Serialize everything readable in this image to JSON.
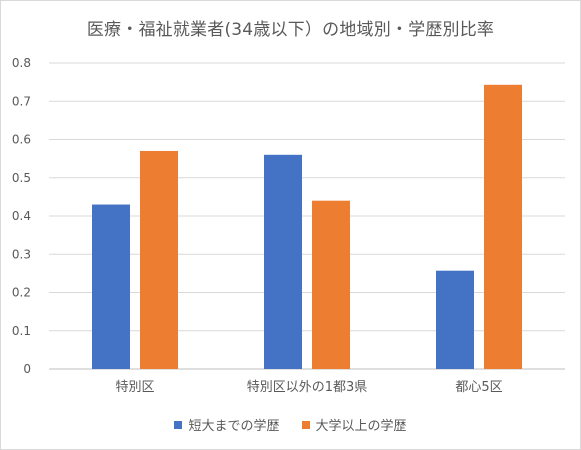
{
  "chart_data": {
    "type": "bar",
    "title": "医療・福祉就業者(34歳以下）の地域別・学歴別比率",
    "categories": [
      "特別区",
      "特別区以外の1都3県",
      "都心5区"
    ],
    "series": [
      {
        "name": "短大までの学歴",
        "color": "#4472c4",
        "values": [
          0.43,
          0.56,
          0.257
        ]
      },
      {
        "name": "大学以上の学歴",
        "color": "#ed7d31",
        "values": [
          0.57,
          0.44,
          0.743
        ]
      }
    ],
    "ylim": [
      0,
      0.8
    ],
    "yticks": [
      "0",
      "0.1",
      "0.2",
      "0.3",
      "0.4",
      "0.5",
      "0.6",
      "0.7",
      "0.8"
    ],
    "grid": true,
    "legend_position": "bottom",
    "gridline_color": "#d9d9d9",
    "axis_color": "#bfbfbf",
    "text_color": "#595959"
  }
}
